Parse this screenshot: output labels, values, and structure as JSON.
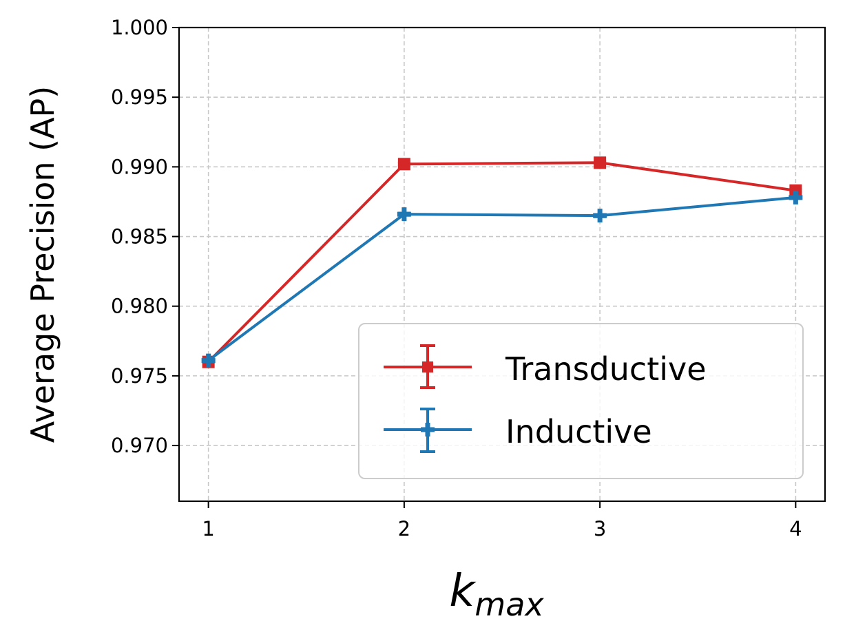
{
  "chart_data": {
    "type": "line",
    "x": [
      1,
      2,
      3,
      4
    ],
    "x_tick_labels": [
      "1",
      "2",
      "3",
      "4"
    ],
    "xlabel": {
      "base": "k",
      "subscript": "max"
    },
    "ylabel": "Average Precision (AP)",
    "ylim": [
      0.966,
      1.0
    ],
    "xlim": [
      0.85,
      4.15
    ],
    "y_ticks": [
      0.97,
      0.975,
      0.98,
      0.985,
      0.99,
      0.995,
      1.0
    ],
    "y_tick_labels": [
      "0.970",
      "0.975",
      "0.980",
      "0.985",
      "0.990",
      "0.995",
      "1.000"
    ],
    "grid": true,
    "legend_position": "lower-right",
    "series": [
      {
        "name": "Transductive",
        "color": "#d62728",
        "marker": "square",
        "values": [
          0.976,
          0.9902,
          0.9903,
          0.9883
        ],
        "errors": [
          5e-05,
          0.0001,
          0.0001,
          0.0001
        ]
      },
      {
        "name": "Inductive",
        "color": "#1f77b4",
        "marker": "plus",
        "values": [
          0.9761,
          0.9866,
          0.9865,
          0.9878
        ],
        "errors": [
          5e-05,
          0.0001,
          0.0001,
          0.0001
        ]
      }
    ]
  }
}
